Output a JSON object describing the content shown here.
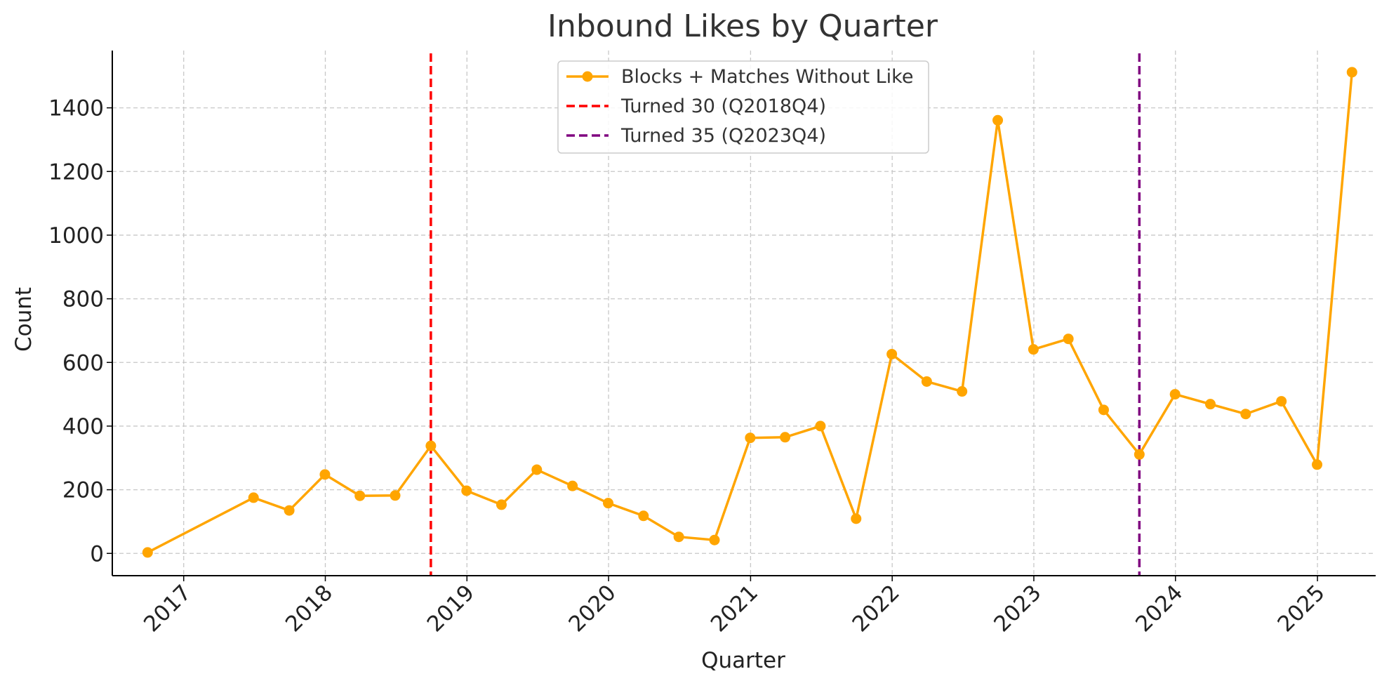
{
  "chart_data": {
    "type": "line",
    "title": "Inbound Likes by Quarter",
    "xlabel": "Quarter",
    "ylabel": "Count",
    "x_axis": "date",
    "xlim": [
      "2016-07-01",
      "2025-05-31"
    ],
    "ylim": [
      -70,
      1580
    ],
    "x_ticks": [
      "2017",
      "2018",
      "2019",
      "2020",
      "2021",
      "2022",
      "2023",
      "2024",
      "2025"
    ],
    "y_ticks": [
      "0",
      "200",
      "400",
      "600",
      "800",
      "1000",
      "1200",
      "1400"
    ],
    "grid": true,
    "legend_position": "top-center",
    "series": [
      {
        "name": "Blocks + Matches Without Like",
        "color": "#FFA500",
        "marker": "circle",
        "points": [
          {
            "x": "2016-09-30",
            "y": 3
          },
          {
            "x": "2017-06-30",
            "y": 175
          },
          {
            "x": "2017-09-30",
            "y": 135
          },
          {
            "x": "2017-12-31",
            "y": 248
          },
          {
            "x": "2018-03-31",
            "y": 181
          },
          {
            "x": "2018-06-30",
            "y": 182
          },
          {
            "x": "2018-09-30",
            "y": 338
          },
          {
            "x": "2018-12-31",
            "y": 197
          },
          {
            "x": "2019-03-31",
            "y": 153
          },
          {
            "x": "2019-06-30",
            "y": 263
          },
          {
            "x": "2019-09-30",
            "y": 212
          },
          {
            "x": "2019-12-31",
            "y": 158
          },
          {
            "x": "2020-03-31",
            "y": 118
          },
          {
            "x": "2020-06-30",
            "y": 52
          },
          {
            "x": "2020-09-30",
            "y": 42
          },
          {
            "x": "2020-12-31",
            "y": 363
          },
          {
            "x": "2021-03-31",
            "y": 365
          },
          {
            "x": "2021-06-30",
            "y": 400
          },
          {
            "x": "2021-09-30",
            "y": 109
          },
          {
            "x": "2021-12-31",
            "y": 626
          },
          {
            "x": "2022-03-31",
            "y": 540
          },
          {
            "x": "2022-06-30",
            "y": 509
          },
          {
            "x": "2022-09-30",
            "y": 1361
          },
          {
            "x": "2022-12-31",
            "y": 641
          },
          {
            "x": "2023-03-31",
            "y": 674
          },
          {
            "x": "2023-06-30",
            "y": 451
          },
          {
            "x": "2023-09-30",
            "y": 311
          },
          {
            "x": "2023-12-31",
            "y": 500
          },
          {
            "x": "2024-03-31",
            "y": 469
          },
          {
            "x": "2024-06-30",
            "y": 438
          },
          {
            "x": "2024-09-30",
            "y": 478
          },
          {
            "x": "2024-12-31",
            "y": 279
          },
          {
            "x": "2025-03-31",
            "y": 1512
          }
        ]
      }
    ],
    "reference_lines": [
      {
        "name": "Turned 30 (Q2018Q4)",
        "x": "2018-09-30",
        "color": "#FF0000",
        "style": "dashed"
      },
      {
        "name": "Turned 35 (Q2023Q4)",
        "x": "2023-09-30",
        "color": "#800080",
        "style": "dashed"
      }
    ]
  }
}
